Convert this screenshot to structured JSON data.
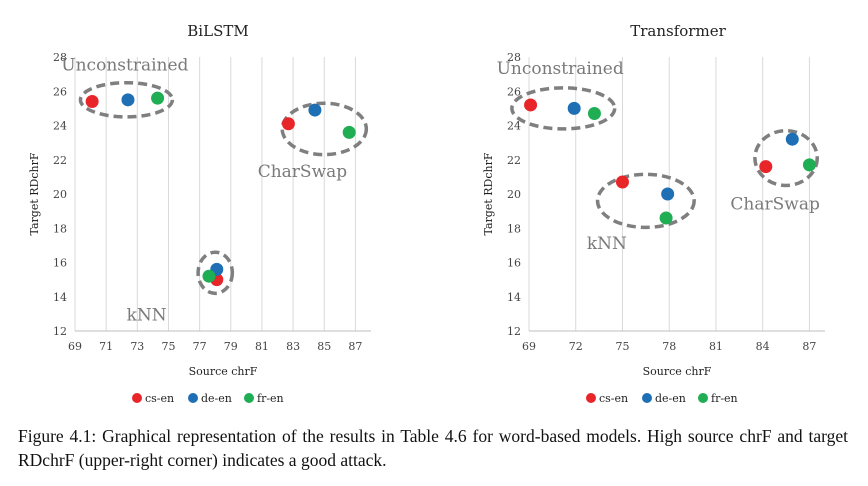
{
  "chart_data": [
    {
      "type": "scatter",
      "title": "BiLSTM",
      "xlabel": "Source chrF",
      "ylabel": "Target RDchrF",
      "xlim": [
        69,
        88
      ],
      "ylim": [
        12,
        28
      ],
      "xticks": [
        69,
        71,
        73,
        75,
        77,
        79,
        81,
        83,
        85,
        87
      ],
      "yticks": [
        12,
        14,
        16,
        18,
        20,
        22,
        24,
        26,
        28
      ],
      "grid": "vertical",
      "legend": "bottom-center",
      "series": [
        {
          "name": "cs-en",
          "color": "#e8262a",
          "points": [
            [
              70.1,
              25.4
            ],
            [
              82.7,
              24.1
            ],
            [
              78.1,
              15.0
            ]
          ]
        },
        {
          "name": "de-en",
          "color": "#1f6fb5",
          "points": [
            [
              72.4,
              25.5
            ],
            [
              84.4,
              24.9
            ],
            [
              78.1,
              15.6
            ]
          ]
        },
        {
          "name": "fr-en",
          "color": "#1fae54",
          "points": [
            [
              74.3,
              25.6
            ],
            [
              86.6,
              23.6
            ],
            [
              77.6,
              15.2
            ]
          ]
        }
      ],
      "groups": [
        {
          "label": "Unconstrained",
          "cx": 72.3,
          "cy": 25.5,
          "rx": 2.95,
          "ry": 1.0,
          "label_x": 72.2,
          "label_y": 27.2
        },
        {
          "label": "CharSwap",
          "cx": 85.0,
          "cy": 23.8,
          "rx": 2.7,
          "ry": 1.5,
          "label_x": 83.6,
          "label_y": 21.0
        },
        {
          "label": "kNN",
          "cx": 78.0,
          "cy": 15.4,
          "rx": 1.1,
          "ry": 1.2,
          "label_x": 73.6,
          "label_y": 12.6
        }
      ]
    },
    {
      "type": "scatter",
      "title": "Transformer",
      "xlabel": "Source chrF",
      "ylabel": "Target RDchrF",
      "xlim": [
        69,
        88
      ],
      "ylim": [
        12,
        28
      ],
      "xticks": [
        69,
        72,
        75,
        78,
        81,
        84,
        87
      ],
      "yticks": [
        12,
        14,
        16,
        18,
        20,
        22,
        24,
        26,
        28
      ],
      "grid": "vertical",
      "legend": "bottom-center",
      "series": [
        {
          "name": "cs-en",
          "color": "#e8262a",
          "points": [
            [
              69.1,
              25.2
            ],
            [
              75.0,
              20.7
            ],
            [
              84.2,
              21.6
            ]
          ]
        },
        {
          "name": "de-en",
          "color": "#1f6fb5",
          "points": [
            [
              71.9,
              25.0
            ],
            [
              77.9,
              20.0
            ],
            [
              85.9,
              23.2
            ]
          ]
        },
        {
          "name": "fr-en",
          "color": "#1fae54",
          "points": [
            [
              73.2,
              24.7
            ],
            [
              77.8,
              18.6
            ],
            [
              87.0,
              21.7
            ]
          ]
        }
      ],
      "groups": [
        {
          "label": "Unconstrained",
          "cx": 71.2,
          "cy": 25.0,
          "rx": 3.3,
          "ry": 1.2,
          "label_x": 71.0,
          "label_y": 27.0
        },
        {
          "label": "kNN",
          "cx": 76.5,
          "cy": 19.6,
          "rx": 3.1,
          "ry": 1.55,
          "label_x": 74.0,
          "label_y": 16.8
        },
        {
          "label": "CharSwap",
          "cx": 85.5,
          "cy": 22.1,
          "rx": 2.0,
          "ry": 1.6,
          "label_x": 84.8,
          "label_y": 19.1
        }
      ]
    }
  ],
  "caption": "Figure 4.1:   Graphical representation of the results in Table 4.6 for word-based models.  High source chrF and target RDchrF (upper-right corner) indicates a good attack."
}
